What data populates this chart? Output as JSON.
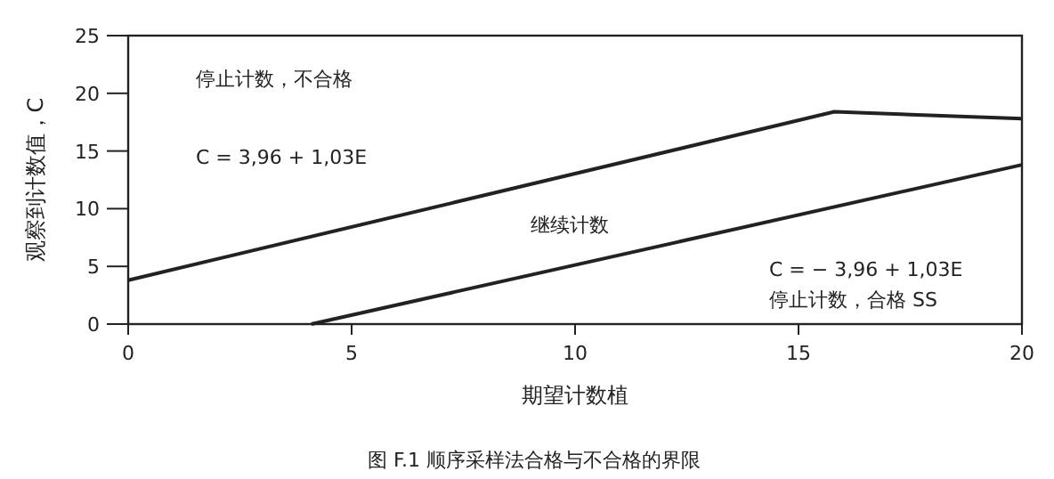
{
  "chart_data": {
    "type": "line",
    "xlabel": "期望计数植",
    "ylabel": "观察到计数值，C",
    "xlim": [
      0,
      20
    ],
    "ylim": [
      0,
      25
    ],
    "xticks": [
      0,
      5,
      10,
      15,
      20
    ],
    "yticks": [
      0,
      5,
      10,
      15,
      20,
      25
    ],
    "grid": false,
    "line_style": "solid",
    "series": [
      {
        "color": "#222222",
        "x": [
          0,
          15.8,
          20
        ],
        "values": [
          3.8,
          18.4,
          17.8
        ]
      },
      {
        "color": "#222222",
        "x": [
          4.1,
          20
        ],
        "values": [
          0,
          13.8
        ]
      }
    ],
    "annotations": [
      "停止计数，不合格",
      "C = 3,96 + 1,03E",
      "继续计数",
      "C = − 3,96 + 1,03E",
      "停止计数，合格 SS",
      "图 F.1  顺序采样法合格与不合格的界限"
    ]
  }
}
